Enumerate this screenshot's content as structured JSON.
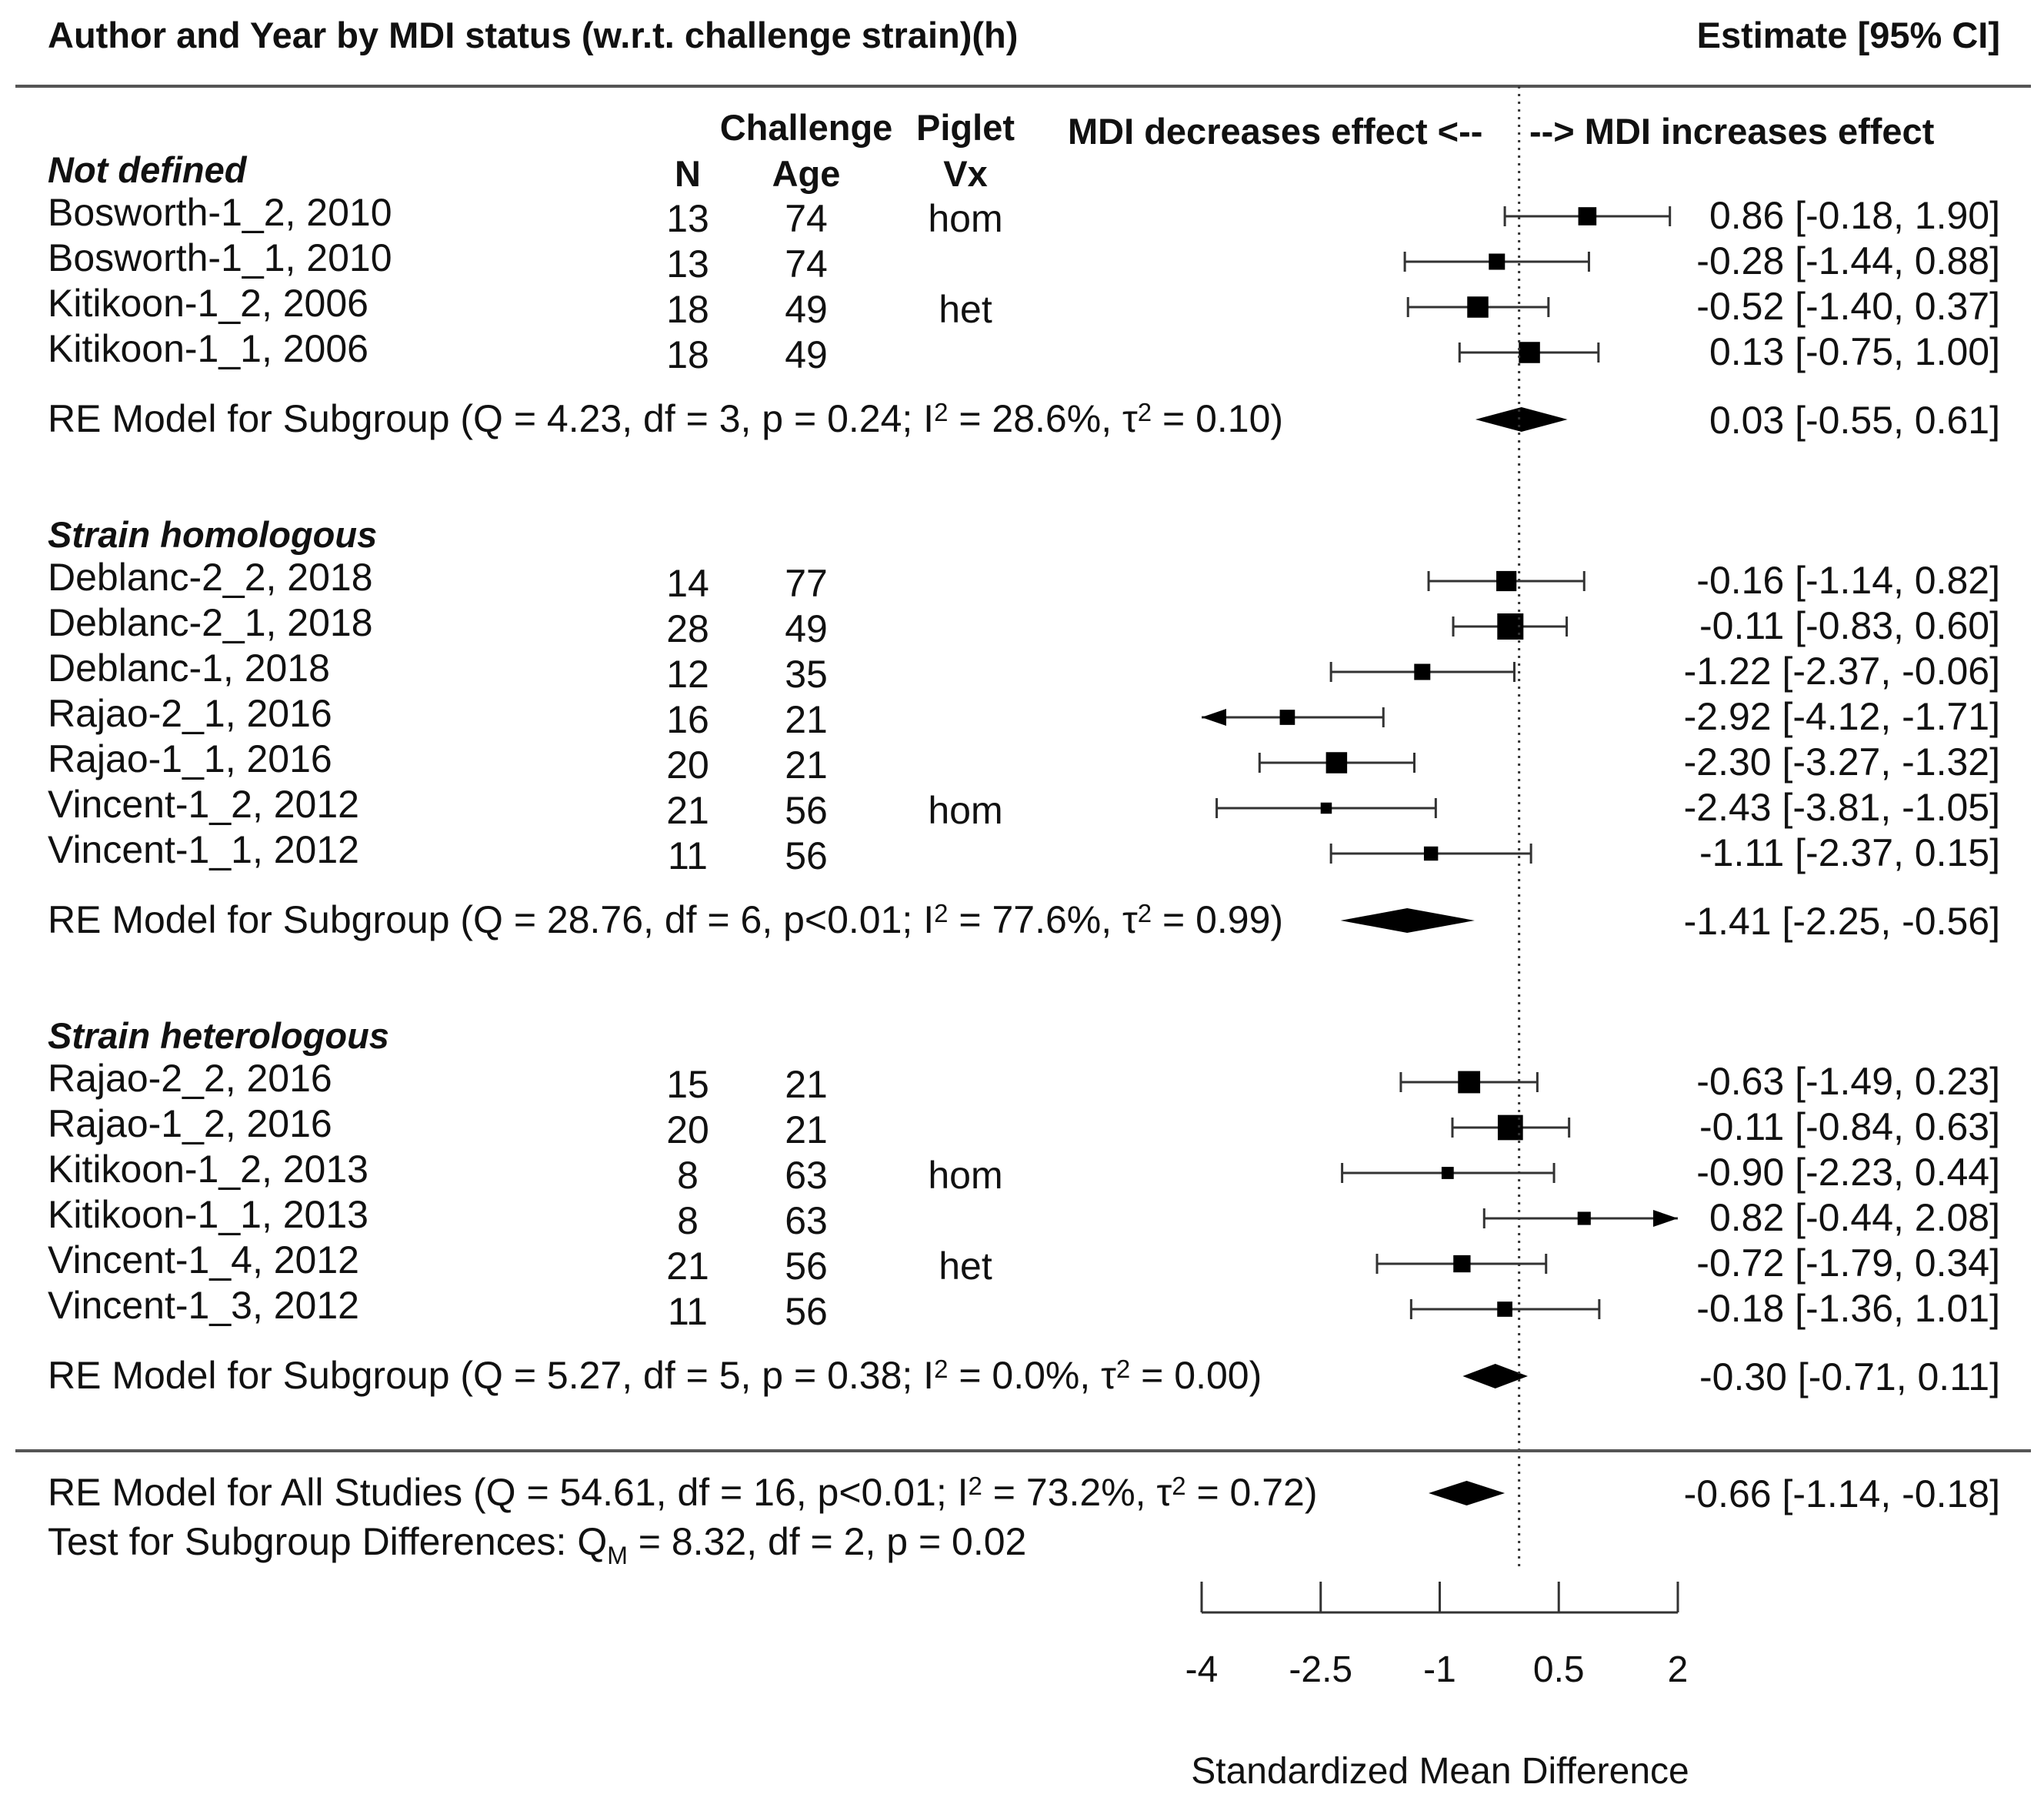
{
  "chart_data": {
    "type": "forest",
    "title": "Author and Year by MDI status (w.r.t. challenge strain)(h)",
    "estimate_header": "Estimate [95% CI]",
    "column_headers": {
      "n": "N",
      "challenge_top": "Challenge",
      "age": "Age",
      "piglet": "Piglet",
      "vx": "Vx"
    },
    "direction_labels": {
      "left": "MDI decreases effect <--",
      "right": "--> MDI increases effect"
    },
    "xlabel": "Standardized Mean Difference",
    "xlim": [
      -4,
      2
    ],
    "xticks": [
      -4,
      -2.5,
      -1,
      0.5,
      2
    ],
    "xtick_labels": [
      "-4",
      "-2.5",
      "-1",
      "0.5",
      "2"
    ],
    "reference_line": 0,
    "groups": [
      {
        "name": "Not defined",
        "studies": [
          {
            "label": "Bosworth-1_2,  2010",
            "n": "13",
            "age": "74",
            "vx": "hom",
            "est": 0.86,
            "lo": -0.18,
            "hi": 1.9,
            "ci_text": "0.86 [-0.18,  1.90]",
            "w": 0.6
          },
          {
            "label": "Bosworth-1_1,  2010",
            "n": "13",
            "age": "74",
            "vx": "",
            "est": -0.28,
            "lo": -1.44,
            "hi": 0.88,
            "ci_text": "-0.28 [-1.44,  0.88]",
            "w": 0.5
          },
          {
            "label": "Kitikoon-1_2,  2006",
            "n": "18",
            "age": "49",
            "vx": "het",
            "est": -0.52,
            "lo": -1.4,
            "hi": 0.37,
            "ci_text": "-0.52 [-1.40,  0.37]",
            "w": 0.75
          },
          {
            "label": "Kitikoon-1_1,  2006",
            "n": "18",
            "age": "49",
            "vx": "",
            "est": 0.13,
            "lo": -0.75,
            "hi": 1.0,
            "ci_text": "0.13 [-0.75,  1.00]",
            "w": 0.75
          }
        ],
        "model": {
          "label": "RE Model for Subgroup (Q = 4.23, df = 3, p = 0.24; I² = 28.6%, τ² = 0.10)",
          "est": 0.03,
          "lo": -0.55,
          "hi": 0.61,
          "ci_text": "0.03 [-0.55, 0.61]"
        }
      },
      {
        "name": "Strain homologous",
        "studies": [
          {
            "label": "Deblanc-2_2,  2018",
            "n": "14",
            "age": "77",
            "vx": "",
            "est": -0.16,
            "lo": -1.14,
            "hi": 0.82,
            "ci_text": "-0.16 [-1.14,  0.82]",
            "w": 0.7
          },
          {
            "label": "Deblanc-2_1,  2018",
            "n": "28",
            "age": "49",
            "vx": "",
            "est": -0.11,
            "lo": -0.83,
            "hi": 0.6,
            "ci_text": "-0.11 [-0.83,  0.60]",
            "w": 1.0
          },
          {
            "label": "Deblanc-1,  2018",
            "n": "12",
            "age": "35",
            "vx": "",
            "est": -1.22,
            "lo": -2.37,
            "hi": -0.06,
            "ci_text": "-1.22 [-2.37, -0.06]",
            "w": 0.5
          },
          {
            "label": "Rajao-2_1,  2016",
            "n": "16",
            "age": "21",
            "vx": "",
            "est": -2.92,
            "lo": -4.12,
            "hi": -1.71,
            "ci_text": "-2.92 [-4.12, -1.71]",
            "w": 0.45
          },
          {
            "label": "Rajao-1_1,  2016",
            "n": "20",
            "age": "21",
            "vx": "",
            "est": -2.3,
            "lo": -3.27,
            "hi": -1.32,
            "ci_text": "-2.30 [-3.27, -1.32]",
            "w": 0.75
          },
          {
            "label": "Vincent-1_2,  2012",
            "n": "21",
            "age": "56",
            "vx": "hom",
            "est": -2.43,
            "lo": -3.81,
            "hi": -1.05,
            "ci_text": "-2.43 [-3.81, -1.05]",
            "w": 0.25
          },
          {
            "label": "Vincent-1_1,  2012",
            "n": "11",
            "age": "56",
            "vx": "",
            "est": -1.11,
            "lo": -2.37,
            "hi": 0.15,
            "ci_text": "-1.11 [-2.37,  0.15]",
            "w": 0.4
          }
        ],
        "model": {
          "label": "RE Model for Subgroup (Q = 28.76, df = 6, p<0.01; I² = 77.6%, τ² = 0.99)",
          "est": -1.41,
          "lo": -2.25,
          "hi": -0.56,
          "ci_text": "-1.41 [-2.25, -0.56]"
        }
      },
      {
        "name": "Strain heterologous",
        "studies": [
          {
            "label": "Rajao-2_2,  2016",
            "n": "15",
            "age": "21",
            "vx": "",
            "est": -0.63,
            "lo": -1.49,
            "hi": 0.23,
            "ci_text": "-0.63 [-1.49,  0.23]",
            "w": 0.8
          },
          {
            "label": "Rajao-1_2,  2016",
            "n": "20",
            "age": "21",
            "vx": "",
            "est": -0.11,
            "lo": -0.84,
            "hi": 0.63,
            "ci_text": "-0.11 [-0.84,  0.63]",
            "w": 0.95
          },
          {
            "label": "Kitikoon-1_2,  2013",
            "n": "8",
            "age": "63",
            "vx": "hom",
            "est": -0.9,
            "lo": -2.23,
            "hi": 0.44,
            "ci_text": "-0.90 [-2.23,  0.44]",
            "w": 0.3
          },
          {
            "label": "Kitikoon-1_1,  2013",
            "n": "8",
            "age": "63",
            "vx": "",
            "est": 0.82,
            "lo": -0.44,
            "hi": 2.08,
            "ci_text": "0.82 [-0.44,  2.08]",
            "w": 0.35
          },
          {
            "label": "Vincent-1_4,  2012",
            "n": "21",
            "age": "56",
            "vx": "het",
            "est": -0.72,
            "lo": -1.79,
            "hi": 0.34,
            "ci_text": "-0.72 [-1.79,  0.34]",
            "w": 0.55
          },
          {
            "label": "Vincent-1_3,  2012",
            "n": "11",
            "age": "56",
            "vx": "",
            "est": -0.18,
            "lo": -1.36,
            "hi": 1.01,
            "ci_text": "-0.18 [-1.36,  1.01]",
            "w": 0.45
          }
        ],
        "model": {
          "label": "RE Model for Subgroup (Q = 5.27, df = 5, p = 0.38; I² = 0.0%, τ² = 0.00)",
          "est": -0.3,
          "lo": -0.71,
          "hi": 0.11,
          "ci_text": "-0.30 [-0.71, 0.11]"
        }
      }
    ],
    "overall": {
      "label": "RE Model for All Studies (Q = 54.61, df = 16, p<0.01; I² = 73.2%, τ² = 0.72)",
      "est": -0.66,
      "lo": -1.14,
      "hi": -0.18,
      "ci_text": "-0.66 [-1.14, -0.18]"
    },
    "subgroup_test": "Test for Subgroup Differences: Q_M = 8.32, df = 2, p = 0.02"
  }
}
